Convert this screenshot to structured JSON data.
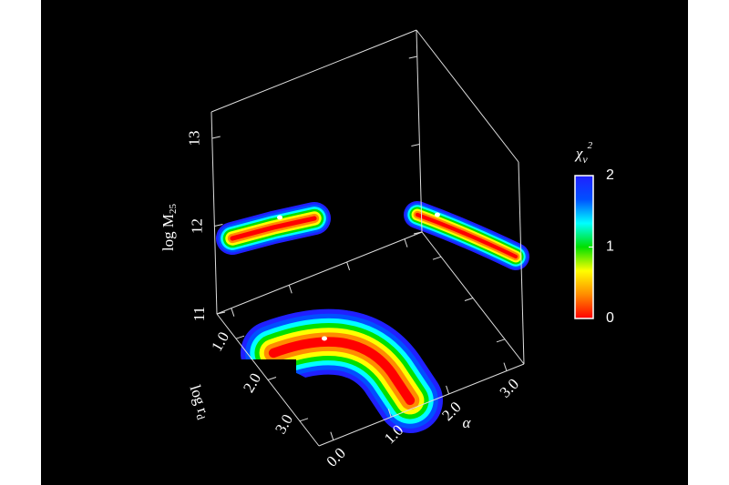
{
  "chart_data": {
    "type": "surface3d",
    "xlabel": "α",
    "ylabel": "log r",
    "ylabel_sub": "d",
    "zlabel": "log M",
    "zlabel_sub": "25",
    "xlim": [
      -0.25,
      3.3
    ],
    "xticks": [
      {
        "value": 0,
        "label": "0.0"
      },
      {
        "value": 1,
        "label": "1.0"
      },
      {
        "value": 2,
        "label": "2.0"
      },
      {
        "value": 3,
        "label": "3.0"
      }
    ],
    "ylim": [
      0.4,
      3.6
    ],
    "yticks": [
      {
        "value": 1,
        "label": "1.0"
      },
      {
        "value": 2,
        "label": "2.0"
      },
      {
        "value": 3,
        "label": "3.0"
      }
    ],
    "zlim": [
      11,
      13.3
    ],
    "zticks": [
      11,
      12,
      13
    ],
    "colorbar": {
      "label": "χ",
      "label_sub": "ν",
      "label_sup": "2",
      "lim": [
        0,
        2
      ],
      "ticks": [
        0,
        1,
        2
      ],
      "colors": [
        "#ff0000",
        "#ff8c00",
        "#ffff00",
        "#00e000",
        "#00ffff",
        "#0050ff",
        "#2020ff"
      ]
    }
  }
}
